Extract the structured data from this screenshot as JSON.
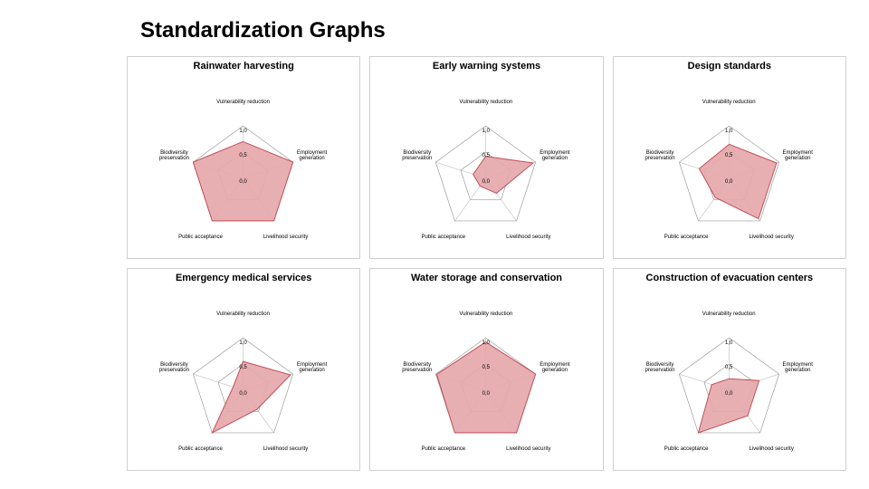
{
  "title": "Standardization Graphs",
  "axes": [
    "Vulnerability reduction",
    "Employment generation",
    "Livelihood security",
    "Public acceptance",
    "Biodiversity preservation"
  ],
  "ring_labels": [
    "1,0",
    "0,5",
    "0,0"
  ],
  "style": {
    "bg": "#ffffff",
    "border": "#d0d0d0",
    "axis_poly_stroke": "#9c9c9c",
    "axis_poly_width": 0.7,
    "spoke_stroke": "#bdbdbd",
    "spoke_width": 0.6,
    "fill": "#e5a8ab",
    "fill_stroke": "#c05058",
    "fill_opacity": 0.92,
    "title_fontsize": 11,
    "label_fontsize": 6
  },
  "charts": [
    {
      "title": "Rainwater harvesting",
      "values": [
        0.7,
        1.0,
        1.0,
        1.0,
        1.0
      ]
    },
    {
      "title": "Early warning systems",
      "values": [
        0.42,
        0.95,
        0.35,
        0.18,
        0.25
      ]
    },
    {
      "title": "Design standards",
      "values": [
        0.65,
        0.95,
        0.95,
        0.45,
        0.6
      ]
    },
    {
      "title": "Emergency medical services",
      "values": [
        0.55,
        0.95,
        0.45,
        1.0,
        0.2
      ]
    },
    {
      "title": "Water storage and conservation",
      "values": [
        0.92,
        1.0,
        1.0,
        1.0,
        0.98
      ]
    },
    {
      "title": "Construction of evacuation centers",
      "values": [
        0.22,
        0.6,
        0.6,
        1.0,
        0.35
      ]
    }
  ]
}
